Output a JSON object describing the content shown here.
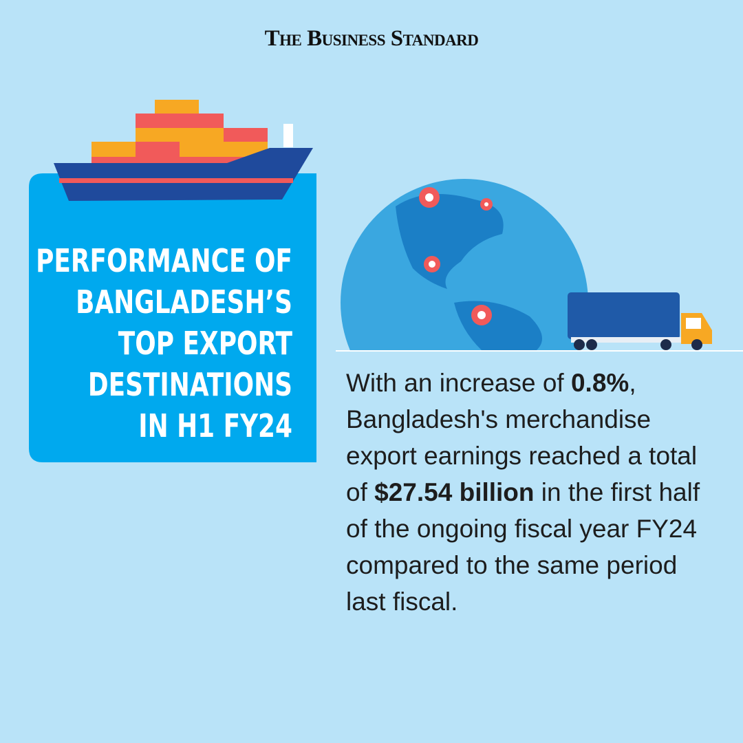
{
  "brand": "The Business Standard",
  "title": {
    "lines": [
      "PERFORMANCE OF",
      "BANGLADESH’S",
      "TOP EXPORT",
      "DESTINATIONS",
      "IN H1 FY24"
    ]
  },
  "body": {
    "segments": [
      {
        "text": "With an increase of ",
        "bold": false
      },
      {
        "text": "0.8%",
        "bold": true
      },
      {
        "text": ", Bangladesh's merchandise export earnings reached a total of ",
        "bold": false
      },
      {
        "text": "$27.54 billion",
        "bold": true
      },
      {
        "text": " in the first half of the ongoing fiscal year FY24 compared to the same period last fiscal.",
        "bold": false
      }
    ]
  }
}
